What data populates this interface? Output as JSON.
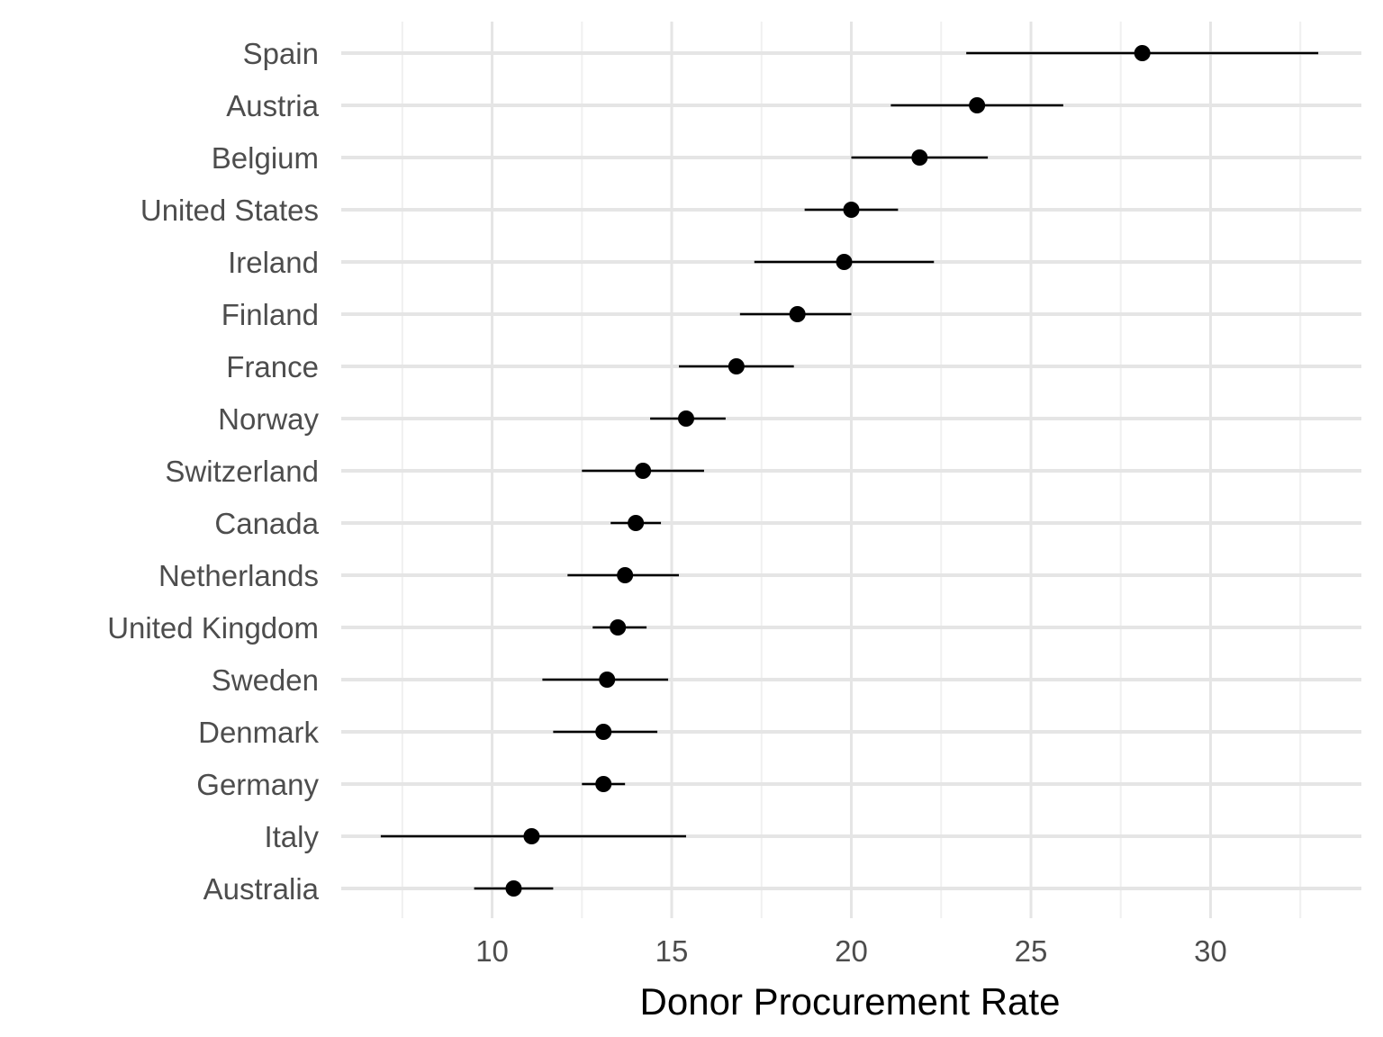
{
  "chart_data": {
    "type": "dot-errorbar",
    "title": "",
    "xlabel": "Donor Procurement Rate",
    "ylabel": "",
    "xlim": [
      5.8,
      34.2
    ],
    "xticks": [
      10,
      15,
      20,
      25,
      30
    ],
    "grid": true,
    "legend": "none",
    "series": [
      {
        "name": "",
        "points": [
          {
            "category": "Spain",
            "value": 28.1,
            "low": 23.2,
            "high": 33.0
          },
          {
            "category": "Austria",
            "value": 23.5,
            "low": 21.1,
            "high": 25.9
          },
          {
            "category": "Belgium",
            "value": 21.9,
            "low": 20.0,
            "high": 23.8
          },
          {
            "category": "United States",
            "value": 20.0,
            "low": 18.7,
            "high": 21.3
          },
          {
            "category": "Ireland",
            "value": 19.8,
            "low": 17.3,
            "high": 22.3
          },
          {
            "category": "Finland",
            "value": 18.5,
            "low": 16.9,
            "high": 20.0
          },
          {
            "category": "France",
            "value": 16.8,
            "low": 15.2,
            "high": 18.4
          },
          {
            "category": "Norway",
            "value": 15.4,
            "low": 14.4,
            "high": 16.5
          },
          {
            "category": "Switzerland",
            "value": 14.2,
            "low": 12.5,
            "high": 15.9
          },
          {
            "category": "Canada",
            "value": 14.0,
            "low": 13.3,
            "high": 14.7
          },
          {
            "category": "Netherlands",
            "value": 13.7,
            "low": 12.1,
            "high": 15.2
          },
          {
            "category": "United Kingdom",
            "value": 13.5,
            "low": 12.8,
            "high": 14.3
          },
          {
            "category": "Sweden",
            "value": 13.2,
            "low": 11.4,
            "high": 14.9
          },
          {
            "category": "Denmark",
            "value": 13.1,
            "low": 11.7,
            "high": 14.6
          },
          {
            "category": "Germany",
            "value": 13.1,
            "low": 12.5,
            "high": 13.7
          },
          {
            "category": "Italy",
            "value": 11.1,
            "low": 6.9,
            "high": 15.4
          },
          {
            "category": "Australia",
            "value": 10.6,
            "low": 9.5,
            "high": 11.7
          }
        ]
      }
    ],
    "colors": {
      "point": "#000000",
      "errorbar": "#000000",
      "grid_major": "#e5e5e5",
      "grid_minor": "#f0f0f0",
      "tick_text": "#4d4d4d"
    }
  }
}
